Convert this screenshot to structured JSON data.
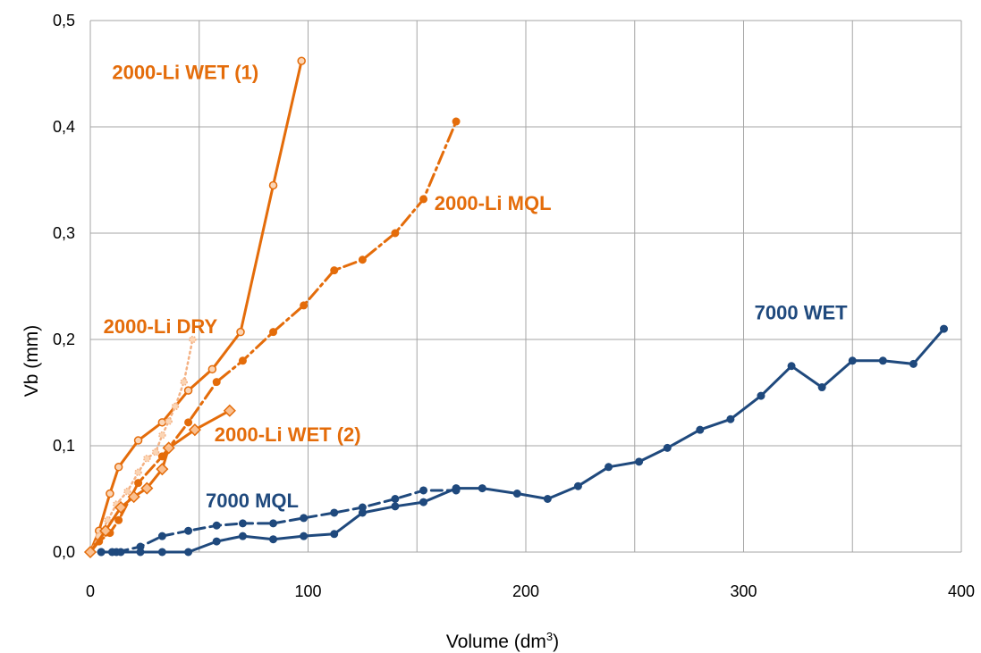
{
  "chart_data": {
    "type": "line",
    "title": "",
    "xlabel": "Volume (dm",
    "xlabel_sup": "3",
    "xlabel_end": ")",
    "ylabel": "Vb (mm)",
    "xlim": [
      0,
      400
    ],
    "ylim": [
      0,
      0.5
    ],
    "x_ticks": [
      "0",
      "100",
      "200",
      "300",
      "400"
    ],
    "x_tick_values": [
      0,
      100,
      200,
      300,
      400
    ],
    "y_ticks": [
      "0,0",
      "0,1",
      "0,2",
      "0,3",
      "0,4",
      "0,5"
    ],
    "y_tick_values": [
      0,
      0.1,
      0.2,
      0.3,
      0.4,
      0.5
    ],
    "grid": true,
    "x_grid_values": [
      0,
      50,
      100,
      150,
      200,
      250,
      300,
      350,
      400
    ],
    "y_grid_values": [
      0,
      0.1,
      0.2,
      0.3,
      0.4,
      0.5
    ],
    "legend": "none",
    "series": [
      {
        "name": "2000-Li  WET (1)",
        "color": "#E46C0A",
        "line_style": "solid",
        "marker": "open-circle",
        "x": [
          0,
          4,
          9,
          13,
          22,
          33,
          45,
          56,
          69,
          84,
          97
        ],
        "y": [
          0,
          0.02,
          0.055,
          0.08,
          0.105,
          0.122,
          0.152,
          0.172,
          0.207,
          0.345,
          0.462
        ]
      },
      {
        "name": "2000-Li  MQL",
        "color": "#E46C0A",
        "line_style": "dashdot",
        "marker": "filled-circle",
        "x": [
          0,
          4,
          9,
          13,
          22,
          33,
          45,
          58,
          70,
          84,
          98,
          112,
          125,
          140,
          153,
          168
        ],
        "y": [
          0,
          0.01,
          0.018,
          0.03,
          0.065,
          0.09,
          0.122,
          0.16,
          0.18,
          0.207,
          0.232,
          0.265,
          0.275,
          0.3,
          0.332,
          0.405
        ]
      },
      {
        "name": "2000-Li  DRY",
        "color": "#F4B183",
        "line_style": "dotted",
        "marker": "star",
        "x": [
          0,
          4,
          8,
          12,
          17,
          22,
          26,
          30,
          33,
          36,
          39,
          43,
          47
        ],
        "y": [
          0,
          0.015,
          0.03,
          0.045,
          0.057,
          0.075,
          0.088,
          0.094,
          0.11,
          0.123,
          0.137,
          0.16,
          0.2
        ]
      },
      {
        "name": "2000-Li  WET (2)",
        "color": "#E46C0A",
        "line_style": "solid",
        "marker": "open-diamond",
        "x": [
          0,
          7,
          14,
          20,
          26,
          33,
          36,
          48,
          64
        ],
        "y": [
          0,
          0.02,
          0.042,
          0.052,
          0.06,
          0.078,
          0.098,
          0.115,
          0.133
        ]
      },
      {
        "name": "7000  MQL",
        "color": "#1F497D",
        "line_style": "dashed",
        "marker": "filled-circle",
        "x": [
          5,
          12,
          23,
          33,
          45,
          58,
          70,
          84,
          98,
          112,
          125,
          140,
          153,
          168
        ],
        "y": [
          0,
          0,
          0.005,
          0.015,
          0.02,
          0.025,
          0.027,
          0.027,
          0.032,
          0.037,
          0.042,
          0.05,
          0.058,
          0.058
        ]
      },
      {
        "name": "7000  WET",
        "color": "#1F497D",
        "line_style": "solid",
        "marker": "filled-circle",
        "x": [
          5,
          10,
          14,
          23,
          33,
          45,
          58,
          70,
          84,
          98,
          112,
          125,
          140,
          153,
          168,
          180,
          196,
          210,
          224,
          238,
          252,
          265,
          280,
          294,
          308,
          322,
          336,
          350,
          364,
          378,
          392
        ],
        "y": [
          0,
          0,
          0,
          0,
          0,
          0,
          0.01,
          0.015,
          0.012,
          0.015,
          0.017,
          0.037,
          0.043,
          0.047,
          0.06,
          0.06,
          0.055,
          0.05,
          0.062,
          0.08,
          0.085,
          0.098,
          0.115,
          0.125,
          0.147,
          0.175,
          0.155,
          0.18,
          0.18,
          0.177,
          0.21
        ]
      }
    ],
    "annotations": [
      {
        "text": "2000-Li  WET (1)",
        "color": "#E46C0A",
        "anchor_x": 10,
        "anchor_y": 0.445
      },
      {
        "text": "2000-Li  MQL",
        "color": "#E46C0A",
        "anchor_x": 158,
        "anchor_y": 0.322
      },
      {
        "text": "2000-Li  DRY",
        "color": "#E46C0A",
        "anchor_x": 6,
        "anchor_y": 0.206
      },
      {
        "text": "2000-Li  WET (2)",
        "color": "#E46C0A",
        "anchor_x": 57,
        "anchor_y": 0.104
      },
      {
        "text": "7000  MQL",
        "color": "#1F497D",
        "anchor_x": 53,
        "anchor_y": 0.042
      },
      {
        "text": "7000  WET",
        "color": "#1F497D",
        "anchor_x": 305,
        "anchor_y": 0.219
      }
    ]
  }
}
